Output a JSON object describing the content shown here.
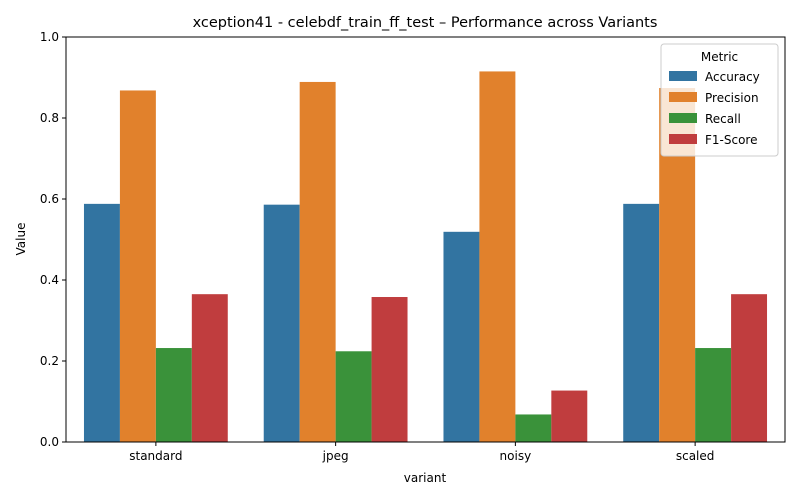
{
  "chart_data": {
    "type": "bar",
    "title": "xception41 - celebdf_train_ff_test – Performance across Variants",
    "xlabel": "variant",
    "ylabel": "Value",
    "ylim": [
      0,
      1.0
    ],
    "yticks": [
      "0.0",
      "0.2",
      "0.4",
      "0.6",
      "0.8",
      "1.0"
    ],
    "categories": [
      "standard",
      "jpeg",
      "noisy",
      "scaled"
    ],
    "legend": {
      "title": "Metric",
      "placement": "top-right"
    },
    "grid": false,
    "series": [
      {
        "name": "Accuracy",
        "color": "#3274a1",
        "values": [
          0.588,
          0.586,
          0.519,
          0.588
        ]
      },
      {
        "name": "Precision",
        "color": "#e1812c",
        "values": [
          0.868,
          0.889,
          0.915,
          0.874
        ]
      },
      {
        "name": "Recall",
        "color": "#3a923a",
        "values": [
          0.232,
          0.224,
          0.068,
          0.232
        ]
      },
      {
        "name": "F1-Score",
        "color": "#c03d3e",
        "values": [
          0.365,
          0.358,
          0.127,
          0.365
        ]
      }
    ]
  }
}
